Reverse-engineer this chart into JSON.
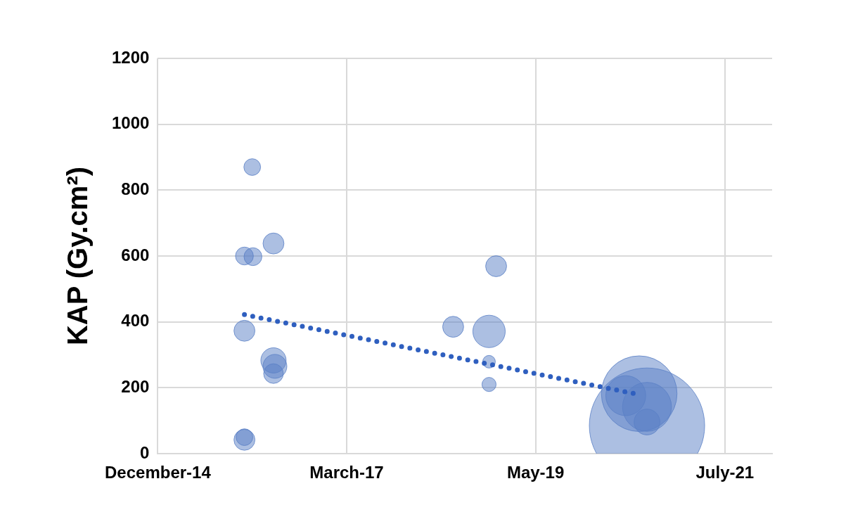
{
  "chart_data": {
    "type": "bubble",
    "ylabel": "KAP (Gy.cm²)",
    "xlim": [
      "2014-12-27",
      "2022-02-10"
    ],
    "xticks": [
      {
        "value": "2014-12-27",
        "label": "December-14"
      },
      {
        "value": "2017-03-06",
        "label": "March-17"
      },
      {
        "value": "2019-05-15",
        "label": "May-19"
      },
      {
        "value": "2021-07-25",
        "label": "July-21"
      }
    ],
    "ylim": [
      0,
      1200
    ],
    "yticks": [
      0,
      200,
      400,
      600,
      800,
      1000,
      1200
    ],
    "grid": true,
    "legend": false,
    "series": [
      {
        "color": "#5a7fc6",
        "x": [
          "2016-01-31",
          "2015-12-29",
          "2016-02-03",
          "2016-04-30",
          "2015-12-29",
          "2016-04-30",
          "2016-05-06",
          "2016-04-30",
          "2015-12-29",
          "2015-12-29",
          "2018-05-31",
          "2018-10-30",
          "2018-11-29",
          "2018-10-30",
          "2018-10-30",
          "2020-08-29",
          "2020-07-27",
          "2020-08-29",
          "2020-05-31",
          "2020-08-29"
        ],
        "values": [
          870,
          600,
          598,
          638,
          373,
          283,
          265,
          243,
          42,
          50,
          385,
          371,
          569,
          279,
          210,
          85,
          182,
          142,
          176,
          96
        ],
        "sizes": [
          0.021,
          0.024,
          0.024,
          0.033,
          0.033,
          0.048,
          0.043,
          0.029,
          0.033,
          0.021,
          0.033,
          0.079,
          0.033,
          0.012,
          0.015,
          1,
          0.43,
          0.18,
          0.12,
          0.05
        ]
      },
      {
        "type": "line",
        "color": "#2f5fbf",
        "line_style": "dotted",
        "marker": "none",
        "x": [
          "2015-12-29",
          "2020-07-21"
        ],
        "values": [
          422,
          180
        ]
      }
    ]
  }
}
